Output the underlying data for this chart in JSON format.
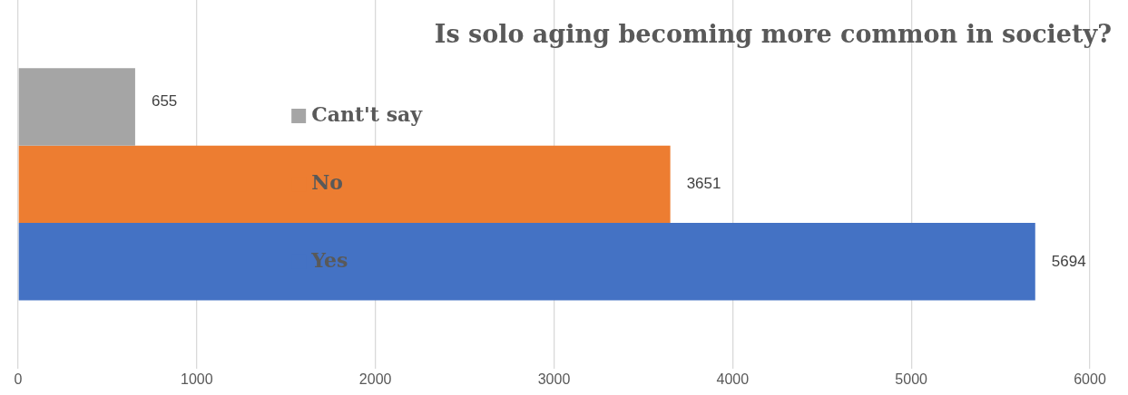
{
  "chart_data": {
    "type": "bar",
    "orientation": "horizontal",
    "title": "Is solo aging becoming more common in society?",
    "categories": [
      null
    ],
    "series": [
      {
        "name": "Cant't say",
        "color": "#a5a5a5",
        "values": [
          655
        ]
      },
      {
        "name": "No",
        "color": "#ed7d31",
        "values": [
          3651
        ]
      },
      {
        "name": "Yes",
        "color": "#4472c4",
        "values": [
          5694
        ]
      }
    ],
    "xlim": [
      0,
      6000
    ],
    "xticks": [
      0,
      1000,
      2000,
      3000,
      4000,
      5000,
      6000
    ],
    "grid": "x",
    "data_labels": true,
    "legend": "left",
    "tick_labels": "x"
  }
}
